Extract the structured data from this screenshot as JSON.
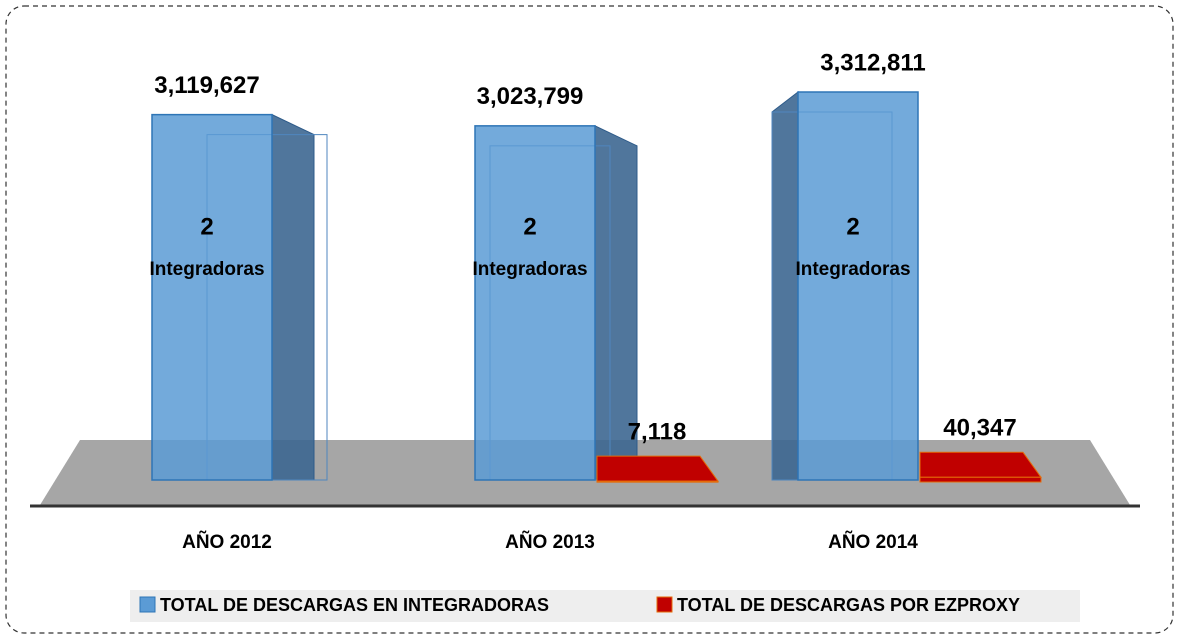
{
  "chart_data": {
    "type": "bar3d",
    "categories": [
      "AÑO 2012",
      "AÑO 2013",
      "AÑO 2014"
    ],
    "series": [
      {
        "name": "TOTAL DE DESCARGAS EN INTEGRADORAS",
        "color": "#5b9bd5",
        "values": [
          3119627,
          3023799,
          3312811
        ],
        "value_labels": [
          "3,119,627",
          "3,023,799",
          "3,312,811"
        ]
      },
      {
        "name": "TOTAL DE DESCARGAS POR EZPROXY",
        "color": "#c00000",
        "values": [
          null,
          7118,
          40347
        ],
        "value_labels": [
          null,
          "7,118",
          "40,347"
        ]
      }
    ],
    "annotations": [
      {
        "count": "2",
        "text": "Integradoras"
      },
      {
        "count": "2",
        "text": "Integradoras"
      },
      {
        "count": "2",
        "text": "Integradoras"
      }
    ]
  }
}
